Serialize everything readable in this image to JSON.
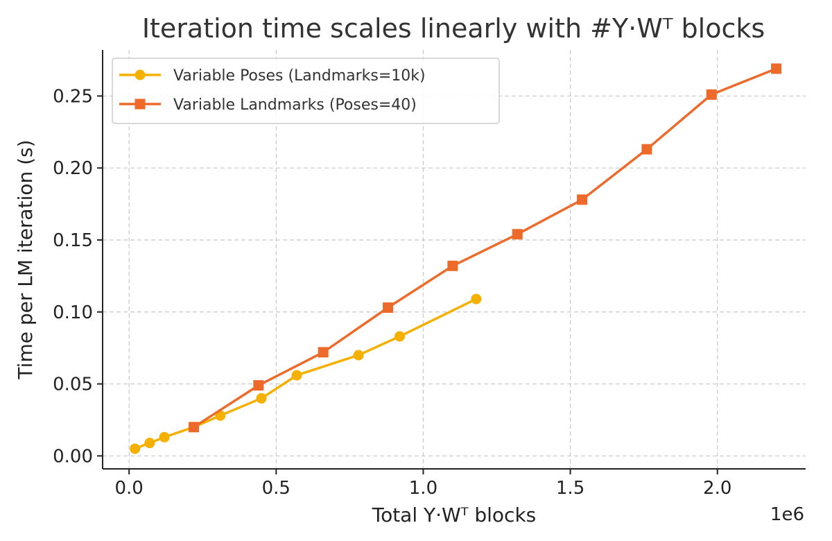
{
  "chart_data": {
    "type": "line",
    "title": "Iteration time scales linearly with #Y·Wᵀ blocks",
    "xlabel": "Total Y·Wᵀ blocks",
    "ylabel": "Time per LM iteration (s)",
    "x_offset_label": "1e6",
    "x_scale": 1000000,
    "xlim": [
      -0.09,
      2.3
    ],
    "ylim": [
      -0.009,
      0.282
    ],
    "xticks": [
      0.0,
      0.5,
      1.0,
      1.5,
      2.0
    ],
    "xtick_labels": [
      "0.0",
      "0.5",
      "1.0",
      "1.5",
      "2.0"
    ],
    "yticks": [
      0.0,
      0.05,
      0.1,
      0.15,
      0.2,
      0.25
    ],
    "ytick_labels": [
      "0.00",
      "0.05",
      "0.10",
      "0.15",
      "0.20",
      "0.25"
    ],
    "grid": true,
    "legend_position": "top-left",
    "series": [
      {
        "name": "Variable Poses (Landmarks=10k)",
        "color": "#F5B000",
        "marker": "circle",
        "x": [
          0.02,
          0.07,
          0.12,
          0.22,
          0.31,
          0.45,
          0.57,
          0.78,
          0.92,
          1.18
        ],
        "y": [
          0.005,
          0.009,
          0.013,
          0.02,
          0.028,
          0.04,
          0.056,
          0.07,
          0.083,
          0.109
        ]
      },
      {
        "name": "Variable Landmarks (Poses=40)",
        "color": "#EE6A2A",
        "marker": "square",
        "x": [
          0.22,
          0.44,
          0.66,
          0.88,
          1.1,
          1.32,
          1.54,
          1.76,
          1.98,
          2.2
        ],
        "y": [
          0.02,
          0.049,
          0.072,
          0.103,
          0.132,
          0.154,
          0.178,
          0.213,
          0.251,
          0.269
        ]
      }
    ]
  }
}
